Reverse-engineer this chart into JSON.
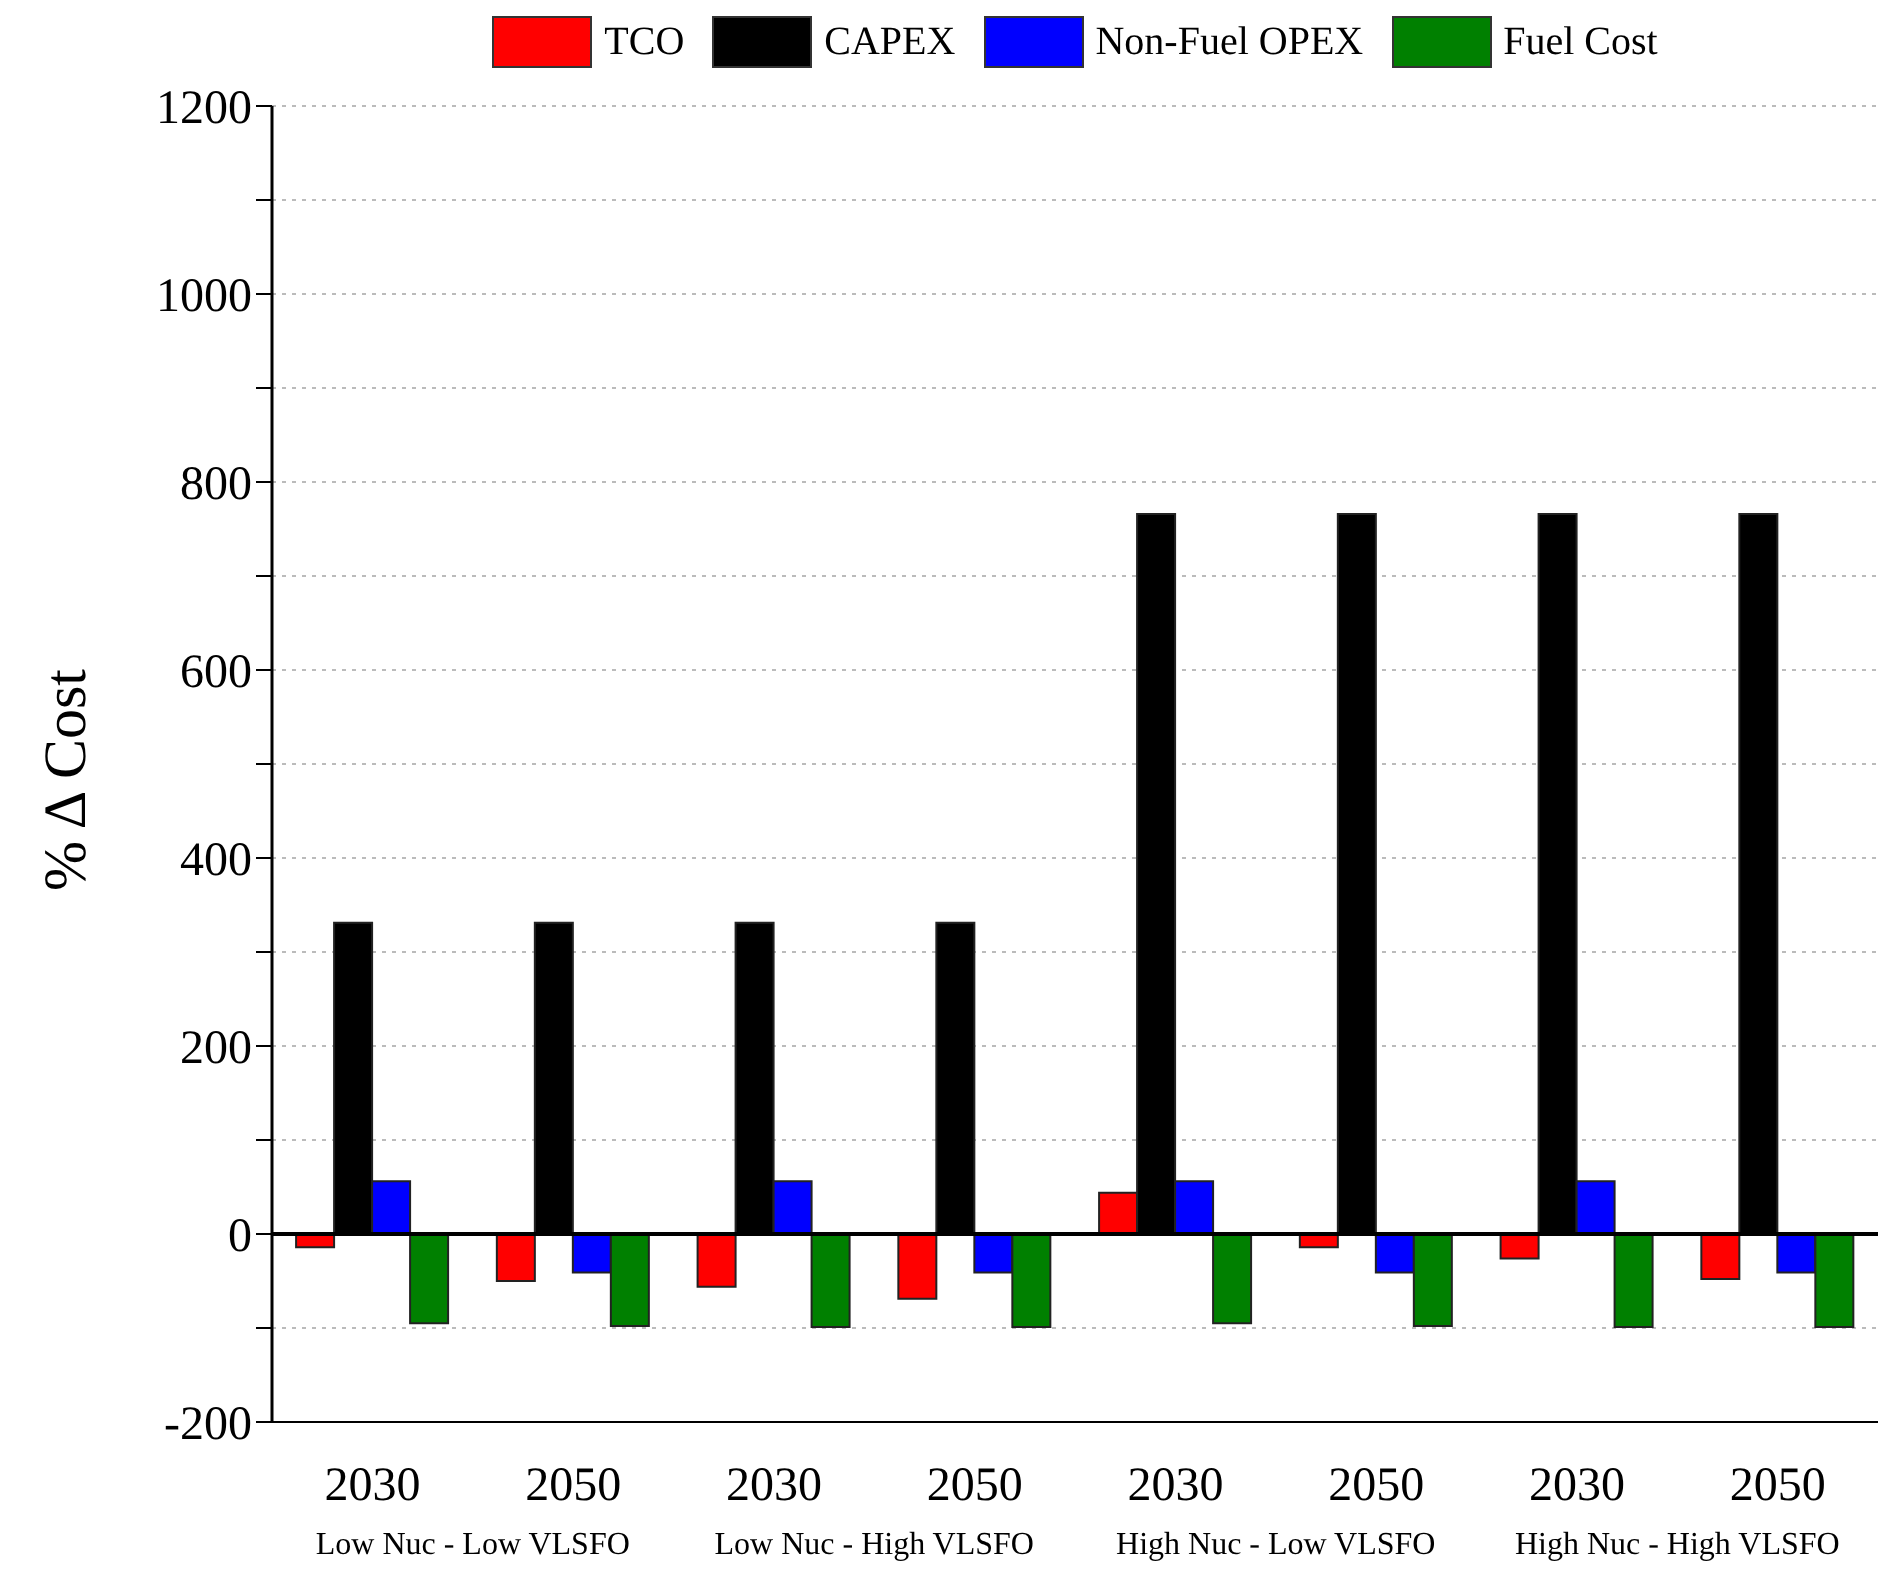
{
  "chart_data": {
    "type": "bar",
    "ylabel": "% Δ Cost",
    "categories": [
      "2030",
      "2050",
      "2030",
      "2050",
      "2030",
      "2050",
      "2030",
      "2050"
    ],
    "series": [
      {
        "name": "TCO",
        "color": "#ff0000",
        "values": [
          -14,
          -50,
          -56,
          -69,
          44,
          -14,
          -26,
          -48
        ]
      },
      {
        "name": "CAPEX",
        "color": "#000000",
        "values": [
          331,
          331,
          331,
          331,
          766,
          766,
          766,
          766
        ]
      },
      {
        "name": "Non-Fuel OPEX",
        "color": "#0000ff",
        "values": [
          56,
          -41,
          56,
          -41,
          56,
          -41,
          56,
          -41
        ]
      },
      {
        "name": "Fuel Cost",
        "color": "#008000",
        "values": [
          -95,
          -98,
          -99,
          -99,
          -95,
          -98,
          -99,
          -99
        ]
      }
    ],
    "annotations": [
      "Low Nuc - Low VLSFO",
      "Low Nuc - High VLSFO",
      "High Nuc - Low VLSFO",
      "High Nuc - High VLSFO"
    ],
    "ylim": [
      -200,
      1200
    ],
    "yticks": [
      -200,
      {
        "value": -100,
        "label": null
      },
      0,
      {
        "value": 100,
        "label": null
      },
      200,
      {
        "value": 300,
        "label": null
      },
      400,
      {
        "value": 500,
        "label": null
      },
      600,
      {
        "value": 700,
        "label": null
      },
      800,
      {
        "value": 900,
        "label": null
      },
      1000,
      {
        "value": 1100,
        "label": null
      },
      1200
    ],
    "ref_lines": [
      {
        "axis": "y",
        "value": 0,
        "label": null,
        "color": "#000000"
      }
    ],
    "grid": "y",
    "legend": "top"
  }
}
